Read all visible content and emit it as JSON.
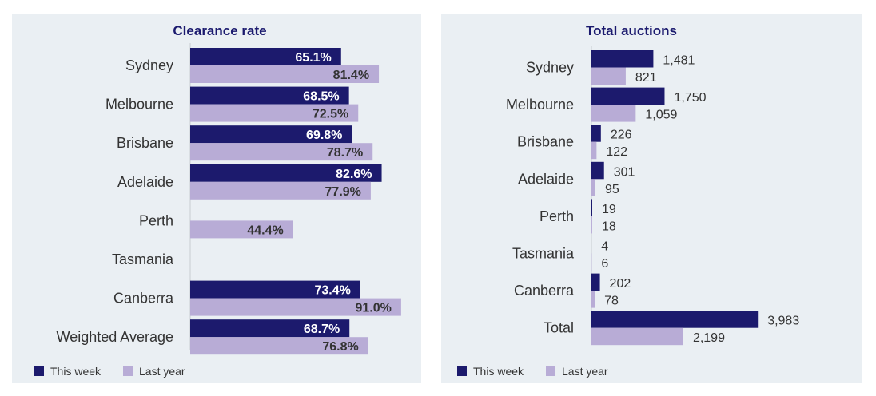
{
  "colors": {
    "this_week": "#1c1a6d",
    "last_year": "#b8acd6",
    "panel_bg": "#eaeff3",
    "title": "#1b1a6e"
  },
  "legend": {
    "this_week": "This week",
    "last_year": "Last year"
  },
  "chart_data": [
    {
      "type": "bar",
      "orientation": "horizontal",
      "title": "Clearance rate",
      "unit": "%",
      "categories": [
        "Sydney",
        "Melbourne",
        "Brisbane",
        "Adelaide",
        "Perth",
        "Tasmania",
        "Canberra",
        "Weighted Average"
      ],
      "series": [
        {
          "name": "This week",
          "values": [
            65.1,
            68.5,
            69.8,
            82.6,
            null,
            null,
            73.4,
            68.7
          ],
          "labels": [
            "65.1%",
            "68.5%",
            "69.8%",
            "82.6%",
            "",
            "",
            "73.4%",
            "68.7%"
          ]
        },
        {
          "name": "Last year",
          "values": [
            81.4,
            72.5,
            78.7,
            77.9,
            44.4,
            null,
            91.0,
            76.8
          ],
          "labels": [
            "81.4%",
            "72.5%",
            "78.7%",
            "77.9%",
            "44.4%",
            "",
            "91.0%",
            "76.8%"
          ]
        }
      ],
      "xlim": [
        0,
        100
      ],
      "label_position": "inside",
      "legend_position": "bottom-left"
    },
    {
      "type": "bar",
      "orientation": "horizontal",
      "title": "Total auctions",
      "categories": [
        "Sydney",
        "Melbourne",
        "Brisbane",
        "Adelaide",
        "Perth",
        "Tasmania",
        "Canberra",
        "Total"
      ],
      "series": [
        {
          "name": "This week",
          "values": [
            1481,
            1750,
            226,
            301,
            19,
            4,
            202,
            3983
          ],
          "labels": [
            "1,481",
            "1,750",
            "226",
            "301",
            "19",
            "4",
            "202",
            "3,983"
          ]
        },
        {
          "name": "Last year",
          "values": [
            821,
            1059,
            122,
            95,
            18,
            6,
            78,
            2199
          ],
          "labels": [
            "821",
            "1,059",
            "122",
            "95",
            "18",
            "6",
            "78",
            "2,199"
          ]
        }
      ],
      "xlim": [
        0,
        4400
      ],
      "label_position": "outside",
      "legend_position": "bottom-left"
    }
  ]
}
